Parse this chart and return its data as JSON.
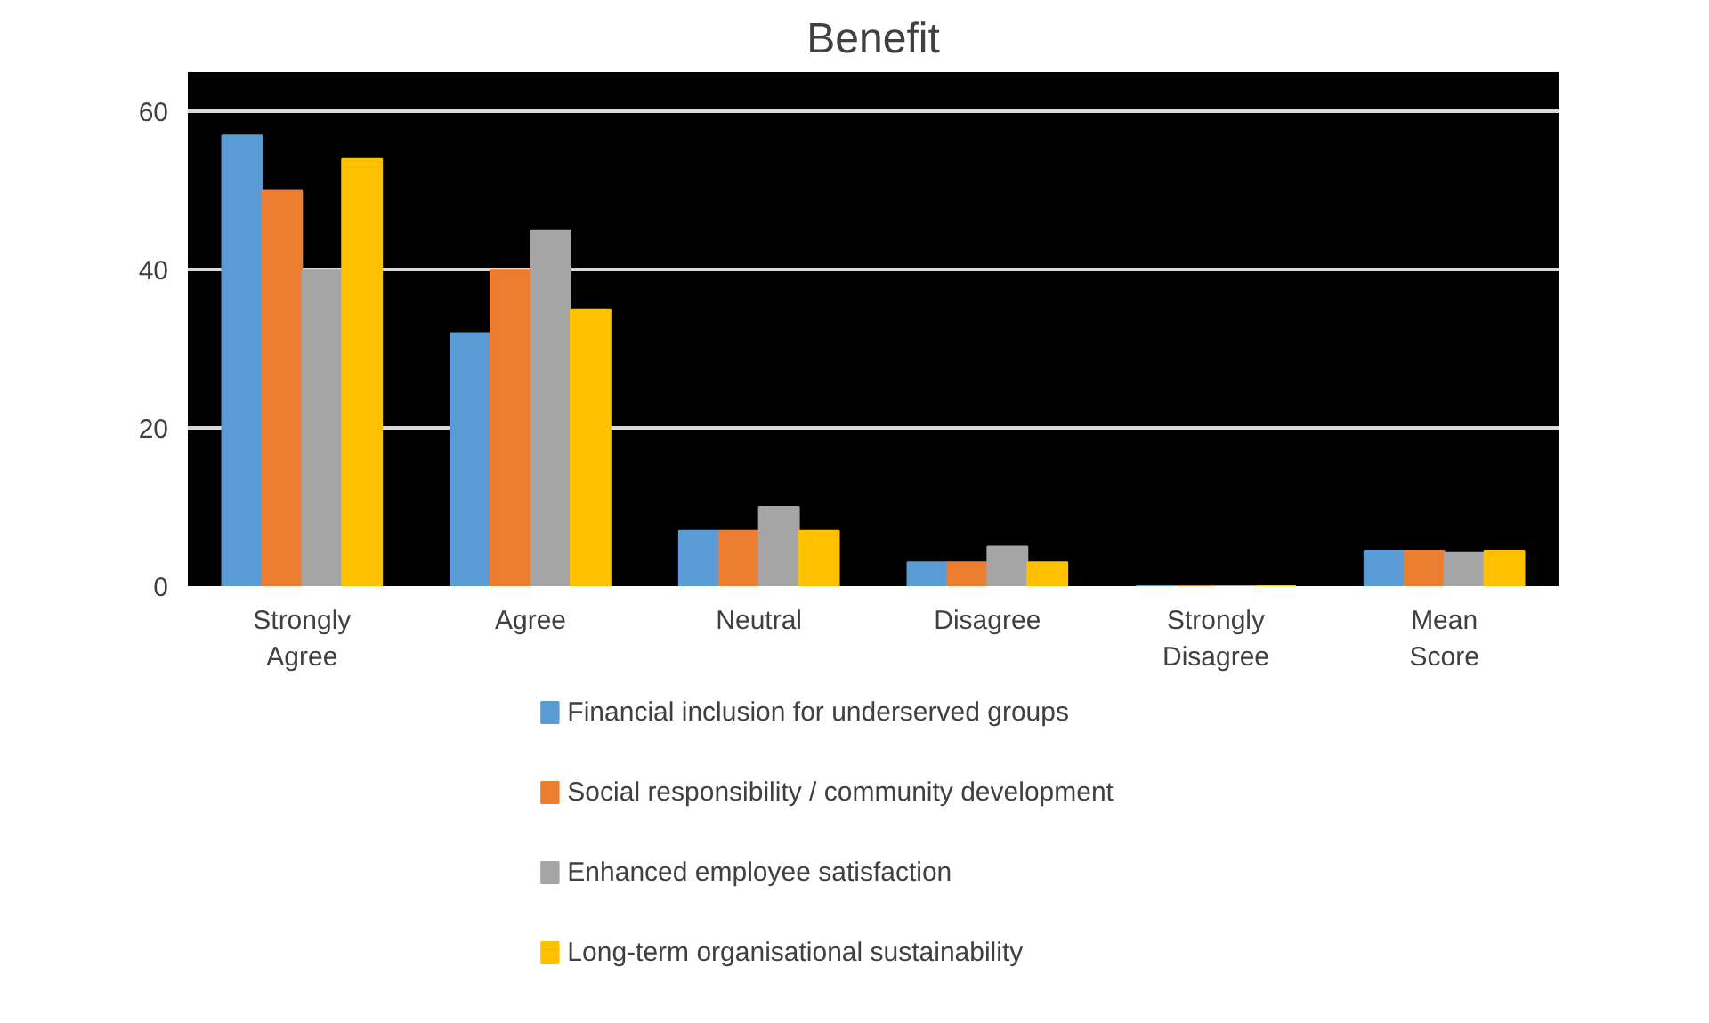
{
  "chart_data": {
    "type": "bar",
    "title": "Benefit",
    "categories": [
      "Strongly Agree",
      "Agree",
      "Neutral",
      "Disagree",
      "Strongly Disagree",
      "Mean Score"
    ],
    "series": [
      {
        "name": "Financial inclusion for underserved groups",
        "color": "#5b9bd5",
        "values": [
          57,
          32,
          7,
          3,
          0,
          4.5
        ]
      },
      {
        "name": "Social responsibility / community development",
        "color": "#ed7d31",
        "values": [
          50,
          40,
          7,
          3,
          0,
          4.5
        ]
      },
      {
        "name": "Enhanced employee satisfaction",
        "color": "#a5a5a5",
        "values": [
          40,
          45,
          10,
          5,
          0,
          4.3
        ]
      },
      {
        "name": "Long-term organisational sustainability",
        "color": "#ffc000",
        "values": [
          54,
          35,
          7,
          3,
          0,
          4.5
        ]
      }
    ],
    "ylim": [
      0,
      65
    ],
    "yticks": [
      0,
      20,
      40,
      60
    ],
    "grid": "y",
    "legend": "bottom"
  }
}
